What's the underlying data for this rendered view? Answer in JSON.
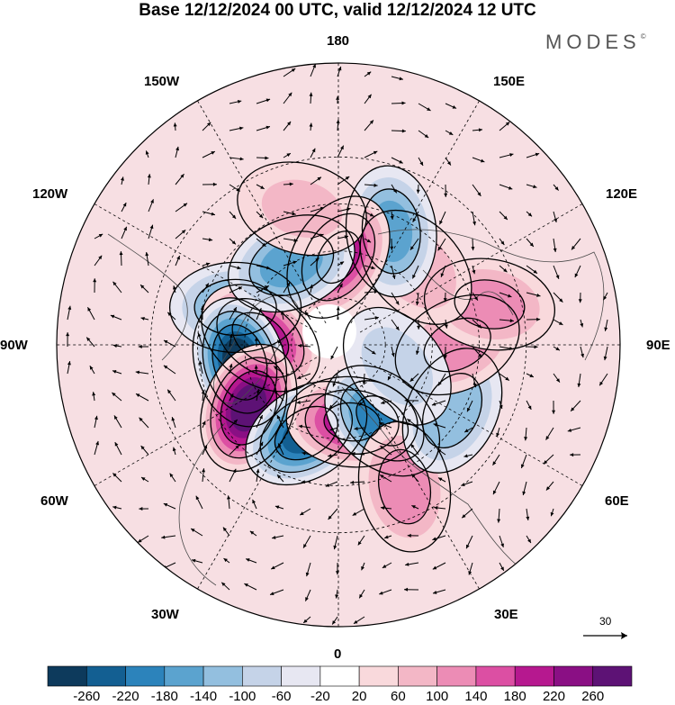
{
  "title": "Base 12/12/2024 00 UTC, valid 12/12/2024 12 UTC",
  "brand": {
    "name": "MODES",
    "mark": "©"
  },
  "longitude_labels": {
    "top": "180",
    "bottom": "0",
    "left": "90W",
    "right": "90E",
    "upper_left": "150W",
    "upper_right": "150E",
    "left_upper": "120W",
    "right_upper": "120E",
    "left_lower": "60W",
    "right_lower": "60E",
    "lower_left": "30W",
    "lower_right": "30E"
  },
  "vector_reference": {
    "value": "30"
  },
  "colorbar": {
    "labels": [
      "-260",
      "-220",
      "-180",
      "-140",
      "-100",
      "-60",
      "-20",
      "20",
      "60",
      "100",
      "140",
      "180",
      "220",
      "260"
    ],
    "colors": [
      "#0d3a5c",
      "#135f92",
      "#2c83bb",
      "#5ba3cf",
      "#93bfdf",
      "#c5d3e8",
      "#e7e7f2",
      "#ffffff",
      "#f9d9dc",
      "#f3b7c6",
      "#ec8cb5",
      "#dc4fa3",
      "#b6188f",
      "#8a0f84",
      "#5d1275"
    ]
  },
  "field_anomalies": [
    {
      "lon": -110,
      "lat": 55,
      "value": -140
    },
    {
      "lon": -95,
      "lat": 65,
      "value": 210
    },
    {
      "lon": -80,
      "lat": 58,
      "value": -270
    },
    {
      "lon": -55,
      "lat": 55,
      "value": 270
    },
    {
      "lon": -20,
      "lat": 60,
      "value": -230
    },
    {
      "lon": 10,
      "lat": 65,
      "value": 190
    },
    {
      "lon": 30,
      "lat": 62,
      "value": -200
    },
    {
      "lon": 25,
      "lat": 40,
      "value": 120
    },
    {
      "lon": 60,
      "lat": 48,
      "value": -130
    },
    {
      "lon": 90,
      "lat": 52,
      "value": 110
    },
    {
      "lon": 105,
      "lat": 40,
      "value": 110
    },
    {
      "lon": 135,
      "lat": 55,
      "value": 90
    },
    {
      "lon": 155,
      "lat": 50,
      "value": -150
    },
    {
      "lon": 180,
      "lat": 62,
      "value": 190
    },
    {
      "lon": -150,
      "lat": 60,
      "value": -160
    },
    {
      "lon": -165,
      "lat": 45,
      "value": 60
    },
    {
      "lon": 70,
      "lat": 70,
      "value": -70
    }
  ]
}
